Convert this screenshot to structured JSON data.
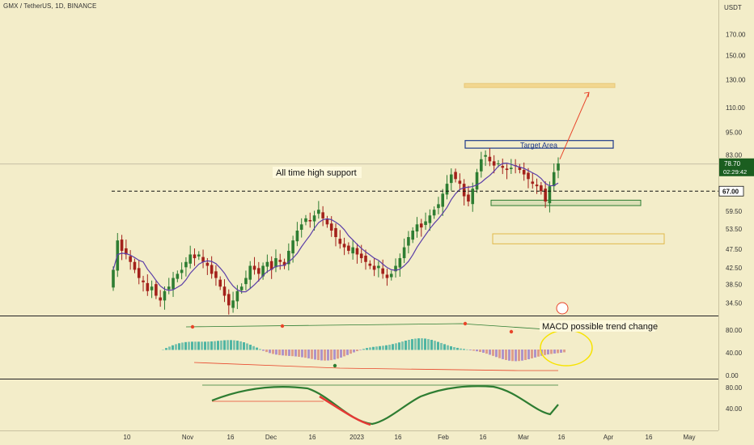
{
  "header": {
    "symbol_title": "GMX / TetherUS, 1D, BINANCE"
  },
  "colors": {
    "background": "#f3edc9",
    "bull": "#26a69a",
    "bear": "#ef5350",
    "candle_bull": "#2e7d32",
    "candle_bear": "#a3211b",
    "ma_line": "#5b3ea8",
    "annotation_red": "#e8452a",
    "box_blue": "#1e3a8a",
    "box_green": "#2e7d32",
    "box_yellow": "#e0b94a",
    "price_tag": "#1b5e20"
  },
  "chart_data": {
    "type": "candlestick",
    "symbol": "GMX / TetherUS",
    "interval": "1D",
    "exchange": "BINANCE",
    "currency": "USDT",
    "y_scale": "log",
    "ylim": [
      32,
      195
    ],
    "y_ticks": [
      "170.00",
      "150.00",
      "130.00",
      "110.00",
      "95.00",
      "83.00",
      "74.50",
      "67.00",
      "59.50",
      "53.50",
      "47.50",
      "42.50",
      "38.50",
      "34.50"
    ],
    "x_ticks": [
      "10",
      "Nov",
      "16",
      "Dec",
      "16",
      "2023",
      "16",
      "Feb",
      "16",
      "Mar",
      "16",
      "Apr",
      "16",
      "May"
    ],
    "current_price": "78.70",
    "countdown": "02:29:42",
    "support_level": "67.00",
    "annotations": {
      "all_time_high_support": "All time high support",
      "target_area": "Target Area",
      "macd_note": "MACD possible trend change"
    },
    "zones": {
      "target_area": [
        86.5,
        90.5
      ],
      "target_line": [
        124,
        127
      ],
      "green_support": [
        61.5,
        63.5
      ],
      "yellow_support": [
        49,
        52
      ]
    },
    "closes": [
      42,
      50,
      47,
      46,
      44,
      42,
      40,
      39,
      37,
      38,
      36,
      35,
      37,
      38,
      40,
      41,
      42,
      44,
      46,
      45,
      46,
      44,
      43,
      41,
      40,
      38,
      36,
      34,
      35,
      37,
      38,
      40,
      43,
      42,
      41,
      43,
      44,
      42,
      45,
      44,
      43,
      47,
      50,
      53,
      55,
      57,
      56,
      58,
      60,
      57,
      55,
      53,
      51,
      49,
      48,
      47,
      48,
      46,
      45,
      44,
      43,
      42,
      43,
      41,
      40,
      41,
      43,
      45,
      48,
      51,
      53,
      55,
      54,
      56,
      58,
      60,
      62,
      66,
      70,
      74,
      72,
      70,
      65,
      63,
      68,
      75,
      81,
      83,
      80,
      78,
      79,
      77,
      76,
      77,
      78,
      76,
      74,
      72,
      70,
      69,
      67,
      63,
      69,
      75,
      79
    ]
  },
  "macd_panel": {
    "y_ticks": [
      "80.00",
      "40.00",
      "0.00"
    ]
  },
  "stoch_panel": {
    "y_ticks": [
      "80.00",
      "40.00"
    ]
  }
}
